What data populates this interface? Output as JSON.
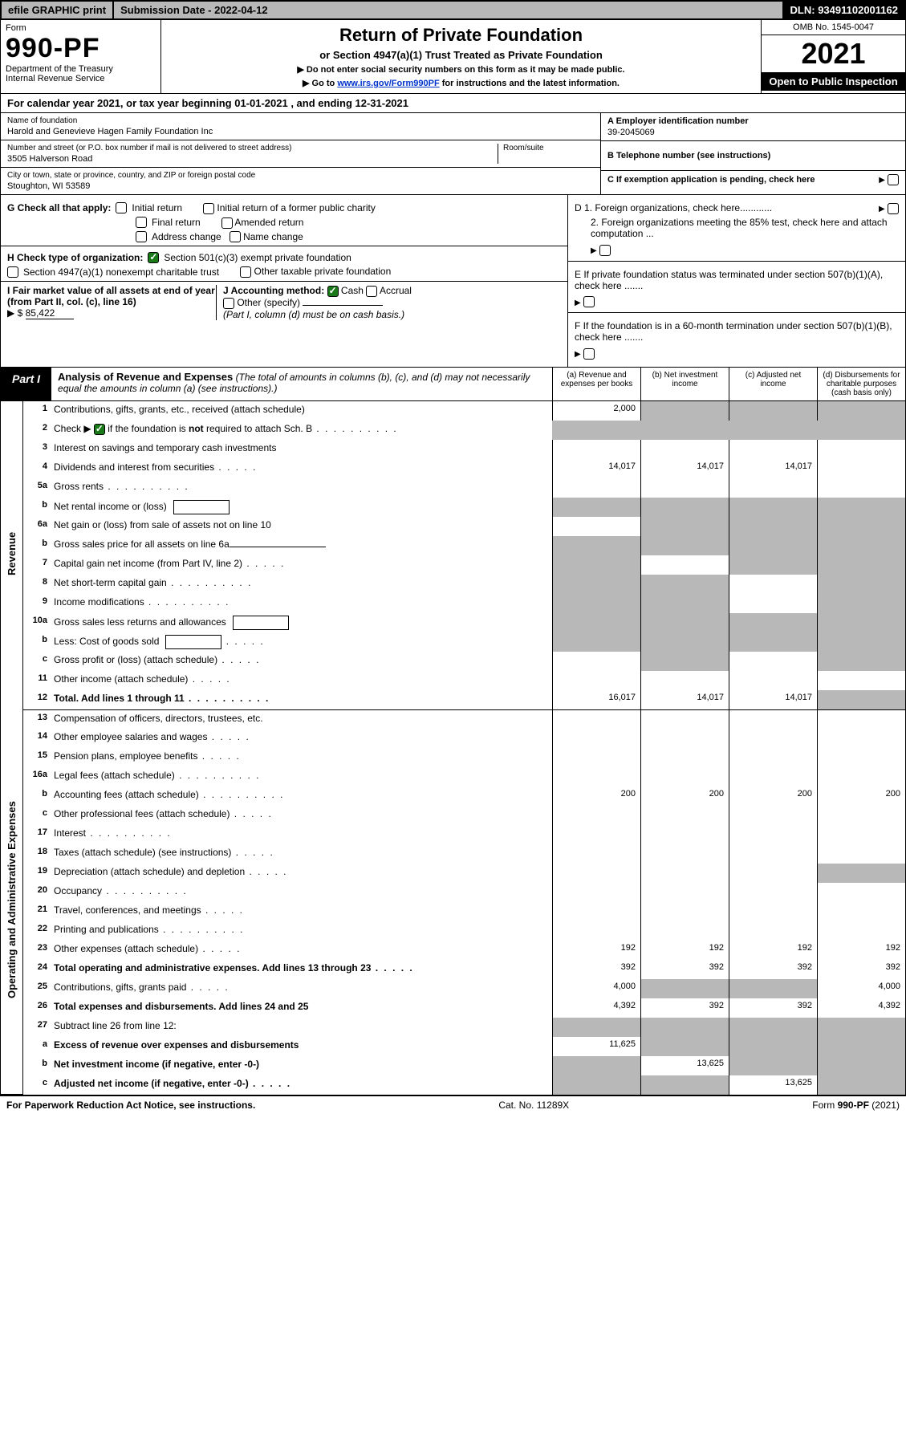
{
  "topbar": {
    "efile": "efile GRAPHIC print",
    "submission": "Submission Date - 2022-04-12",
    "dln": "DLN: 93491102001162"
  },
  "header": {
    "form_word": "Form",
    "form_no": "990-PF",
    "dept": "Department of the Treasury",
    "irs": "Internal Revenue Service",
    "title": "Return of Private Foundation",
    "subtitle": "or Section 4947(a)(1) Trust Treated as Private Foundation",
    "note1": "▶ Do not enter social security numbers on this form as it may be made public.",
    "note2_pre": "▶ Go to ",
    "note2_link": "www.irs.gov/Form990PF",
    "note2_post": " for instructions and the latest information.",
    "omb": "OMB No. 1545-0047",
    "year": "2021",
    "open": "Open to Public Inspection"
  },
  "calyear": "For calendar year 2021, or tax year beginning 01-01-2021                         , and ending 12-31-2021",
  "entity": {
    "name_label": "Name of foundation",
    "name": "Harold and Genevieve Hagen Family Foundation Inc",
    "addr_label": "Number and street (or P.O. box number if mail is not delivered to street address)",
    "addr": "3505 Halverson Road",
    "room_label": "Room/suite",
    "city_label": "City or town, state or province, country, and ZIP or foreign postal code",
    "city": "Stoughton, WI  53589",
    "a_label": "A Employer identification number",
    "ein": "39-2045069",
    "b_label": "B Telephone number (see instructions)",
    "c_label": "C If exemption application is pending, check here"
  },
  "g": {
    "label": "G Check all that apply:",
    "i1": "Initial return",
    "i2": "Initial return of a former public charity",
    "i3": "Final return",
    "i4": "Amended return",
    "i5": "Address change",
    "i6": "Name change"
  },
  "h": {
    "label": "H Check type of organization:",
    "h1": "Section 501(c)(3) exempt private foundation",
    "h2": "Section 4947(a)(1) nonexempt charitable trust",
    "h3": "Other taxable private foundation"
  },
  "i": {
    "label": "I Fair market value of all assets at end of year (from Part II, col. (c), line 16)",
    "arrow": "▶ $",
    "val": "85,422"
  },
  "j": {
    "label": "J Accounting method:",
    "j1": "Cash",
    "j2": "Accrual",
    "j3": "Other (specify)",
    "note": "(Part I, column (d) must be on cash basis.)"
  },
  "d": {
    "d1": "D 1. Foreign organizations, check here............",
    "d2": "2. Foreign organizations meeting the 85% test, check here and attach computation ...",
    "e": "E  If private foundation status was terminated under section 507(b)(1)(A), check here .......",
    "f": "F  If the foundation is in a 60-month termination under section 507(b)(1)(B), check here ......."
  },
  "part1": {
    "tag": "Part I",
    "title": "Analysis of Revenue and Expenses",
    "note": "(The total of amounts in columns (b), (c), and (d) may not necessarily equal the amounts in column (a) (see instructions).)",
    "cols": {
      "a": "(a)   Revenue and expenses per books",
      "b": "(b)   Net investment income",
      "c": "(c)   Adjusted net income",
      "d": "(d)  Disbursements for charitable purposes (cash basis only)"
    }
  },
  "sidelabels": {
    "rev": "Revenue",
    "exp": "Operating and Administrative Expenses"
  },
  "rows": [
    {
      "n": "1",
      "d": "Contributions, gifts, grants, etc., received (attach schedule)",
      "a": "2,000",
      "bShade": true,
      "cShade": true,
      "dShade": true
    },
    {
      "n": "2",
      "d": "Check ▶ ☑ if the foundation is not required to attach Sch. B",
      "dots": true,
      "noCells": true
    },
    {
      "n": "3",
      "d": "Interest on savings and temporary cash investments"
    },
    {
      "n": "4",
      "d": "Dividends and interest from securities",
      "dots": "s",
      "a": "14,017",
      "b": "14,017",
      "c": "14,017"
    },
    {
      "n": "5a",
      "d": "Gross rents",
      "dots": true
    },
    {
      "n": "b",
      "d": "Net rental income or (loss)",
      "inlineBox": true,
      "aShade": true,
      "bShade": true,
      "cShade": true,
      "dShade": true
    },
    {
      "n": "6a",
      "d": "Net gain or (loss) from sale of assets not on line 10",
      "bShade": true,
      "cShade": true,
      "dShade": true
    },
    {
      "n": "b",
      "d": "Gross sales price for all assets on line 6a",
      "inlineLine": true,
      "aShade": true,
      "bShade": true,
      "cShade": true,
      "dShade": true
    },
    {
      "n": "7",
      "d": "Capital gain net income (from Part IV, line 2)",
      "dots": "s",
      "aShade": true,
      "cShade": true,
      "dShade": true
    },
    {
      "n": "8",
      "d": "Net short-term capital gain",
      "dots": true,
      "aShade": true,
      "bShade": true,
      "dShade": true
    },
    {
      "n": "9",
      "d": "Income modifications",
      "dots": true,
      "aShade": true,
      "bShade": true,
      "dShade": true
    },
    {
      "n": "10a",
      "d": "Gross sales less returns and allowances",
      "inlineBox": true,
      "aShade": true,
      "bShade": true,
      "cShade": true,
      "dShade": true
    },
    {
      "n": "b",
      "d": "Less: Cost of goods sold",
      "dots": "s",
      "inlineBox": true,
      "aShade": true,
      "bShade": true,
      "cShade": true,
      "dShade": true
    },
    {
      "n": "c",
      "d": "Gross profit or (loss) (attach schedule)",
      "dots": "s",
      "bShade": true,
      "dShade": true
    },
    {
      "n": "11",
      "d": "Other income (attach schedule)",
      "dots": "s"
    },
    {
      "n": "12",
      "d": "Total. Add lines 1 through 11",
      "dots": true,
      "bold": true,
      "a": "16,017",
      "b": "14,017",
      "c": "14,017",
      "dShade": true
    },
    {
      "n": "13",
      "d": "Compensation of officers, directors, trustees, etc."
    },
    {
      "n": "14",
      "d": "Other employee salaries and wages",
      "dots": "s"
    },
    {
      "n": "15",
      "d": "Pension plans, employee benefits",
      "dots": "s"
    },
    {
      "n": "16a",
      "d": "Legal fees (attach schedule)",
      "dots": true
    },
    {
      "n": "b",
      "d": "Accounting fees (attach schedule)",
      "dots": true,
      "a": "200",
      "b": "200",
      "c": "200",
      "dv": "200"
    },
    {
      "n": "c",
      "d": "Other professional fees (attach schedule)",
      "dots": "s"
    },
    {
      "n": "17",
      "d": "Interest",
      "dots": true
    },
    {
      "n": "18",
      "d": "Taxes (attach schedule) (see instructions)",
      "dots": "s"
    },
    {
      "n": "19",
      "d": "Depreciation (attach schedule) and depletion",
      "dots": "s",
      "dShade": true
    },
    {
      "n": "20",
      "d": "Occupancy",
      "dots": true
    },
    {
      "n": "21",
      "d": "Travel, conferences, and meetings",
      "dots": "s"
    },
    {
      "n": "22",
      "d": "Printing and publications",
      "dots": true
    },
    {
      "n": "23",
      "d": "Other expenses (attach schedule)",
      "dots": "s",
      "a": "192",
      "b": "192",
      "c": "192",
      "dv": "192"
    },
    {
      "n": "24",
      "d": "Total operating and administrative expenses. Add lines 13 through 23",
      "dots": "s",
      "bold": true,
      "a": "392",
      "b": "392",
      "c": "392",
      "dv": "392"
    },
    {
      "n": "25",
      "d": "Contributions, gifts, grants paid",
      "dots": "s",
      "a": "4,000",
      "bShade": true,
      "cShade": true,
      "dv": "4,000"
    },
    {
      "n": "26",
      "d": "Total expenses and disbursements. Add lines 24 and 25",
      "bold": true,
      "a": "4,392",
      "b": "392",
      "c": "392",
      "dv": "4,392"
    },
    {
      "n": "27",
      "d": "Subtract line 26 from line 12:",
      "aShade": true,
      "bShade": true,
      "cShade": true,
      "dShade": true
    },
    {
      "n": "a",
      "d": "Excess of revenue over expenses and disbursements",
      "bold": true,
      "a": "11,625",
      "bShade": true,
      "cShade": true,
      "dShade": true
    },
    {
      "n": "b",
      "d": "Net investment income (if negative, enter -0-)",
      "bold": true,
      "aShade": true,
      "b": "13,625",
      "cShade": true,
      "dShade": true
    },
    {
      "n": "c",
      "d": "Adjusted net income (if negative, enter -0-)",
      "dots": "s",
      "bold": true,
      "aShade": true,
      "bShade": true,
      "c": "13,625",
      "dShade": true
    }
  ],
  "rowSplit": 16,
  "footer": {
    "left": "For Paperwork Reduction Act Notice, see instructions.",
    "mid": "Cat. No. 11289X",
    "right": "Form 990-PF (2021)"
  }
}
